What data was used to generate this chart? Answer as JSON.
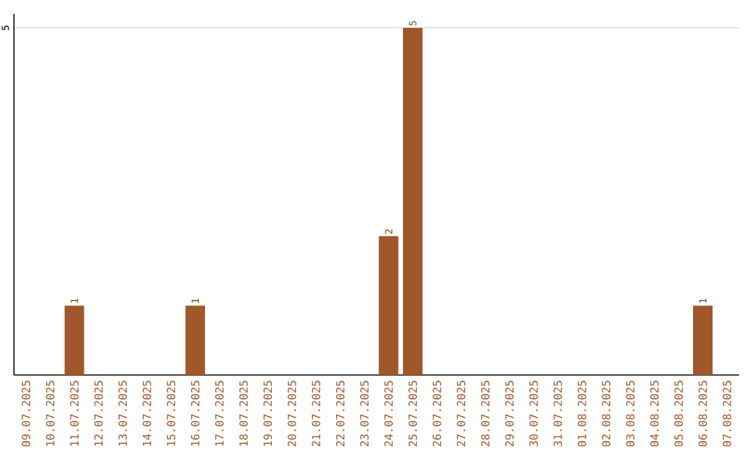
{
  "chart_data": {
    "type": "bar",
    "categories": [
      "09.07.2025",
      "10.07.2025",
      "11.07.2025",
      "12.07.2025",
      "13.07.2025",
      "14.07.2025",
      "15.07.2025",
      "16.07.2025",
      "17.07.2025",
      "18.07.2025",
      "19.07.2025",
      "20.07.2025",
      "21.07.2025",
      "22.07.2025",
      "23.07.2025",
      "24.07.2025",
      "25.07.2025",
      "26.07.2025",
      "27.07.2025",
      "28.07.2025",
      "29.07.2025",
      "30.07.2025",
      "31.07.2025",
      "01.08.2025",
      "02.08.2025",
      "03.08.2025",
      "04.08.2025",
      "05.08.2025",
      "06.08.2025",
      "07.08.2025"
    ],
    "values": [
      0,
      0,
      1,
      0,
      0,
      0,
      0,
      1,
      0,
      0,
      0,
      0,
      0,
      0,
      0,
      2,
      5,
      0,
      0,
      0,
      0,
      0,
      0,
      0,
      0,
      0,
      0,
      0,
      1,
      0
    ],
    "color": "#a0582a",
    "value_labels": [
      null,
      null,
      "1",
      null,
      null,
      null,
      null,
      "1",
      null,
      null,
      null,
      null,
      null,
      null,
      null,
      "2",
      "5",
      null,
      null,
      null,
      null,
      null,
      null,
      null,
      null,
      null,
      null,
      null,
      "1",
      null
    ],
    "ylim": [
      0,
      5.2
    ],
    "yticks": [
      5
    ],
    "grid": "y"
  }
}
